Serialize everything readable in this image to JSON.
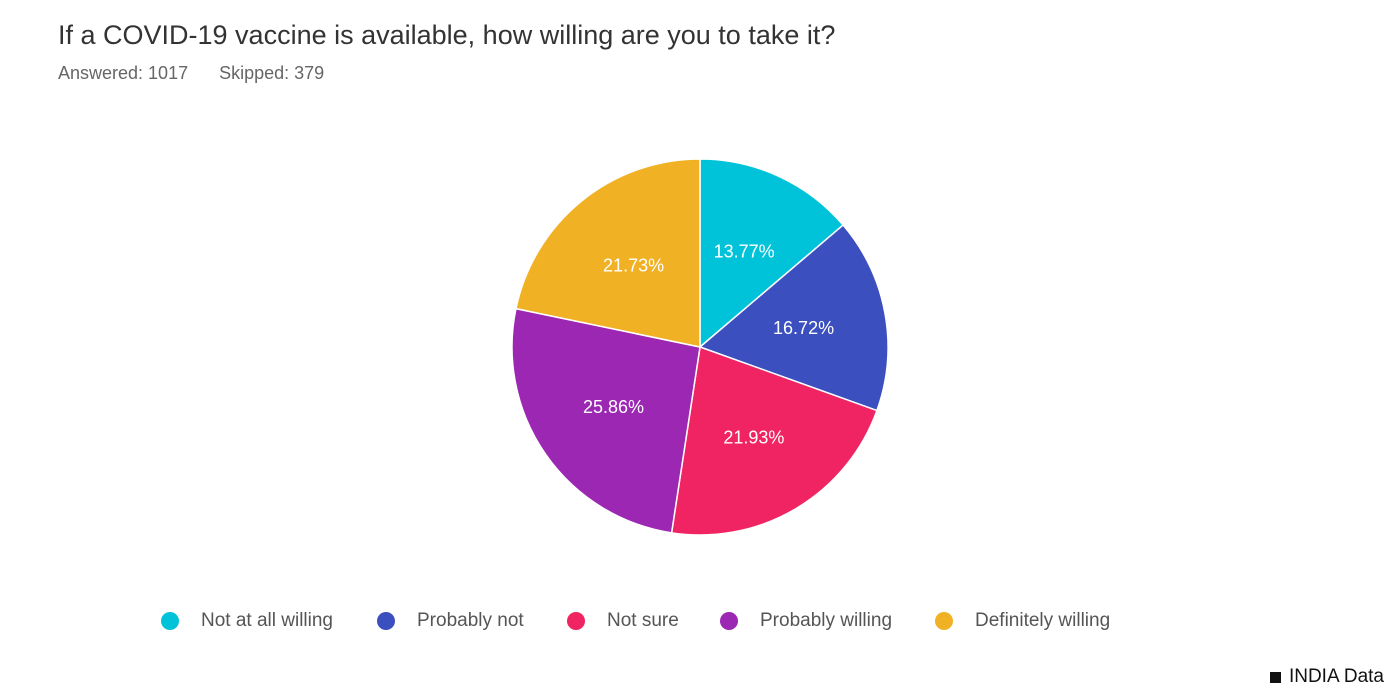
{
  "chart_data": {
    "type": "pie",
    "title": "If a COVID-19 vaccine is available, how willing are you to take it?",
    "answered_label": "Answered: 1017",
    "skipped_label": "Skipped: 379",
    "categories": [
      "Not at all willing",
      "Probably not",
      "Not sure",
      "Probably willing",
      "Definitely willing"
    ],
    "values": [
      13.77,
      16.72,
      21.93,
      25.86,
      21.73
    ],
    "value_labels": [
      "13.77%",
      "16.72%",
      "21.93%",
      "25.86%",
      "21.73%"
    ],
    "colors": [
      "#00c3da",
      "#3c4fbf",
      "#f02462",
      "#9b27b2",
      "#f1b125"
    ],
    "legend_position": "bottom",
    "start_angle": "12 o'clock",
    "direction": "clockwise"
  },
  "brand": {
    "label": "INDIA Data"
  }
}
